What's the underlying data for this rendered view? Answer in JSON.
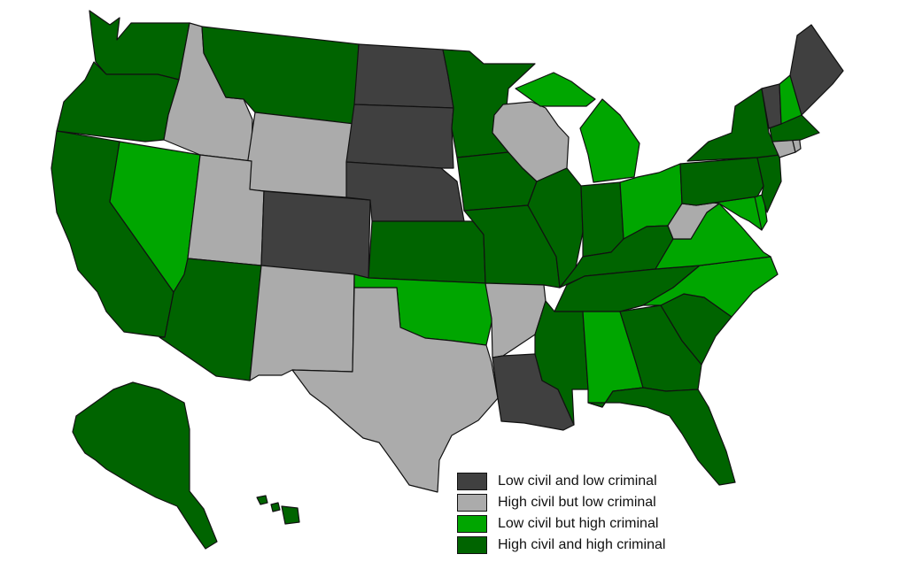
{
  "categories": {
    "dark": {
      "label": "Low civil and low criminal",
      "color": "#404040"
    },
    "gray": {
      "label": "High civil but low criminal",
      "color": "#ababab"
    },
    "light": {
      "label": "Low civil but high criminal",
      "color": "#00a600"
    },
    "green": {
      "label": "High civil and high criminal",
      "color": "#006400"
    }
  },
  "legend_order": [
    "dark",
    "gray",
    "light",
    "green"
  ],
  "states": [
    {
      "name": "Washington",
      "category": "green"
    },
    {
      "name": "Oregon",
      "category": "green"
    },
    {
      "name": "California",
      "category": "green"
    },
    {
      "name": "Nevada",
      "category": "light"
    },
    {
      "name": "Idaho",
      "category": "gray"
    },
    {
      "name": "Montana",
      "category": "green"
    },
    {
      "name": "Wyoming",
      "category": "gray"
    },
    {
      "name": "Utah",
      "category": "gray"
    },
    {
      "name": "Arizona",
      "category": "green"
    },
    {
      "name": "Colorado",
      "category": "dark"
    },
    {
      "name": "New Mexico",
      "category": "gray"
    },
    {
      "name": "North Dakota",
      "category": "dark"
    },
    {
      "name": "South Dakota",
      "category": "dark"
    },
    {
      "name": "Nebraska",
      "category": "dark"
    },
    {
      "name": "Kansas",
      "category": "green"
    },
    {
      "name": "Oklahoma",
      "category": "light"
    },
    {
      "name": "Texas",
      "category": "gray"
    },
    {
      "name": "Minnesota",
      "category": "green"
    },
    {
      "name": "Iowa",
      "category": "green"
    },
    {
      "name": "Missouri",
      "category": "green"
    },
    {
      "name": "Arkansas",
      "category": "gray"
    },
    {
      "name": "Louisiana",
      "category": "dark"
    },
    {
      "name": "Wisconsin",
      "category": "gray"
    },
    {
      "name": "Illinois",
      "category": "green"
    },
    {
      "name": "Michigan",
      "category": "light"
    },
    {
      "name": "Indiana",
      "category": "green"
    },
    {
      "name": "Ohio",
      "category": "light"
    },
    {
      "name": "Kentucky",
      "category": "green"
    },
    {
      "name": "Tennessee",
      "category": "green"
    },
    {
      "name": "Mississippi",
      "category": "green"
    },
    {
      "name": "Alabama",
      "category": "light"
    },
    {
      "name": "Georgia",
      "category": "green"
    },
    {
      "name": "Florida",
      "category": "green"
    },
    {
      "name": "South Carolina",
      "category": "green"
    },
    {
      "name": "North Carolina",
      "category": "light"
    },
    {
      "name": "Virginia",
      "category": "light"
    },
    {
      "name": "West Virginia",
      "category": "gray"
    },
    {
      "name": "Maryland",
      "category": "light"
    },
    {
      "name": "Delaware",
      "category": "light"
    },
    {
      "name": "Pennsylvania",
      "category": "green"
    },
    {
      "name": "New Jersey",
      "category": "green"
    },
    {
      "name": "New York",
      "category": "green"
    },
    {
      "name": "Connecticut",
      "category": "gray"
    },
    {
      "name": "Rhode Island",
      "category": "gray"
    },
    {
      "name": "Massachusetts",
      "category": "green"
    },
    {
      "name": "Vermont",
      "category": "dark"
    },
    {
      "name": "New Hampshire",
      "category": "light"
    },
    {
      "name": "Maine",
      "category": "dark"
    },
    {
      "name": "Alaska",
      "category": "green"
    },
    {
      "name": "Hawaii",
      "category": "green"
    }
  ]
}
